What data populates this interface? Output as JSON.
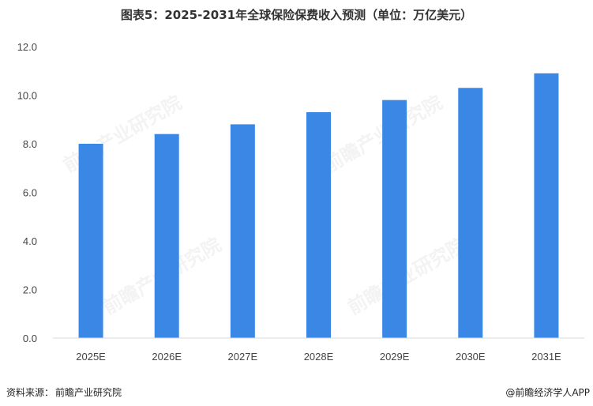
{
  "title": "图表5：2025-2031年全球保险保费收入预测（单位：万亿美元）",
  "chart_data": {
    "type": "bar",
    "categories": [
      "2025E",
      "2026E",
      "2027E",
      "2028E",
      "2029E",
      "2030E",
      "2031E"
    ],
    "values": [
      8.0,
      8.4,
      8.8,
      9.3,
      9.8,
      10.3,
      10.9
    ],
    "ylim": [
      0,
      12
    ],
    "yticks": [
      "0.0",
      "2.0",
      "4.0",
      "6.0",
      "8.0",
      "10.0",
      "12.0"
    ],
    "grid": false,
    "bar_color": "#3a87e6",
    "axis_color": "#d9d9d9"
  },
  "footer": {
    "source_label": "资料来源：",
    "source_name": "前瞻产业研究院",
    "brand": "@前瞻经济学人APP"
  },
  "watermark": "前瞻产业研究院"
}
